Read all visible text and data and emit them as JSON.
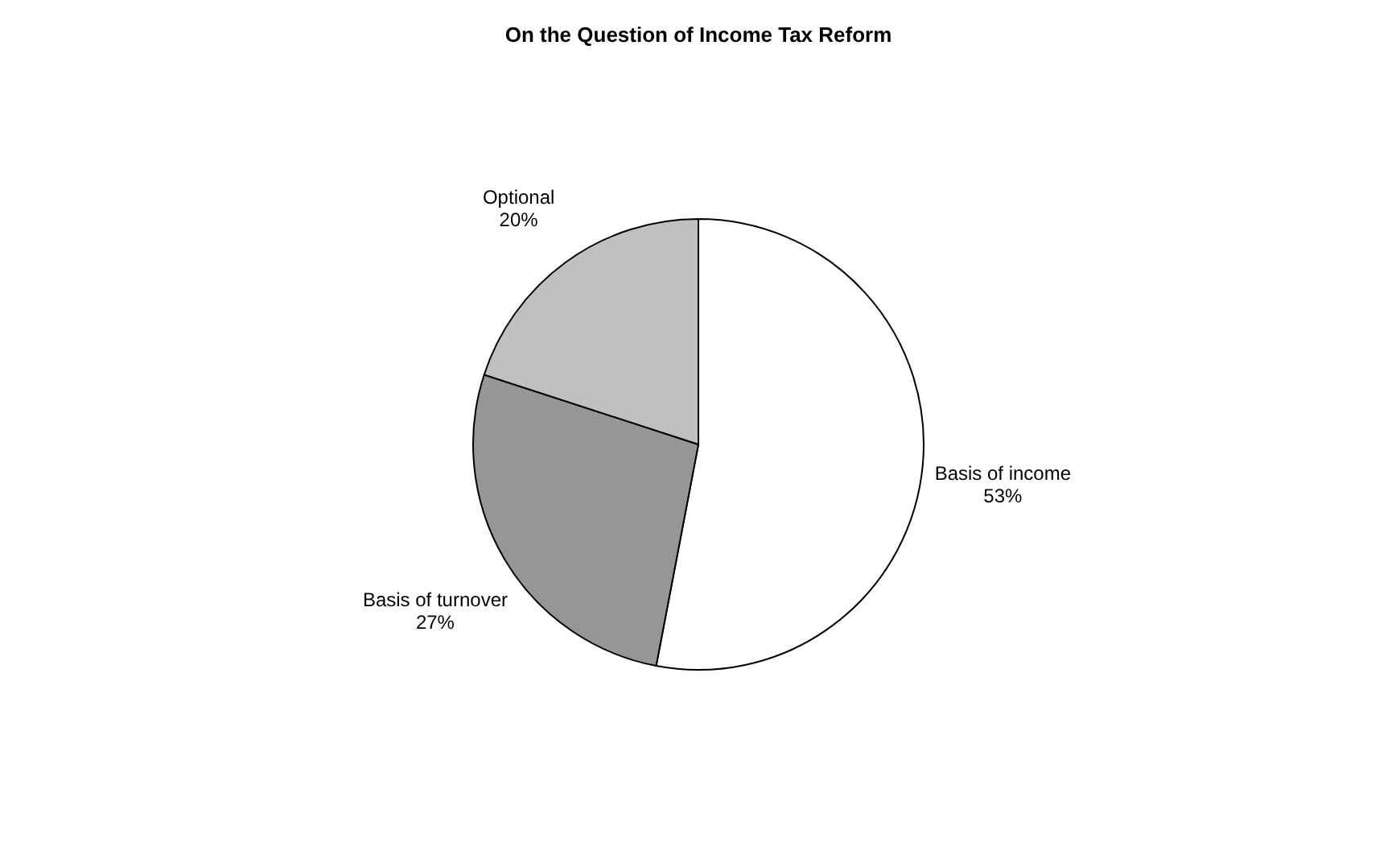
{
  "chart_data": {
    "type": "pie",
    "title": "On the Question of Income Tax Reform",
    "categories": [
      "Basis of income",
      "Basis of turnover",
      "Optional"
    ],
    "values": [
      53,
      27,
      20
    ],
    "colors": [
      "#ffffff",
      "#969696",
      "#c0c0c0"
    ],
    "value_labels": [
      "53%",
      "27%",
      "20%"
    ],
    "legend": false
  }
}
